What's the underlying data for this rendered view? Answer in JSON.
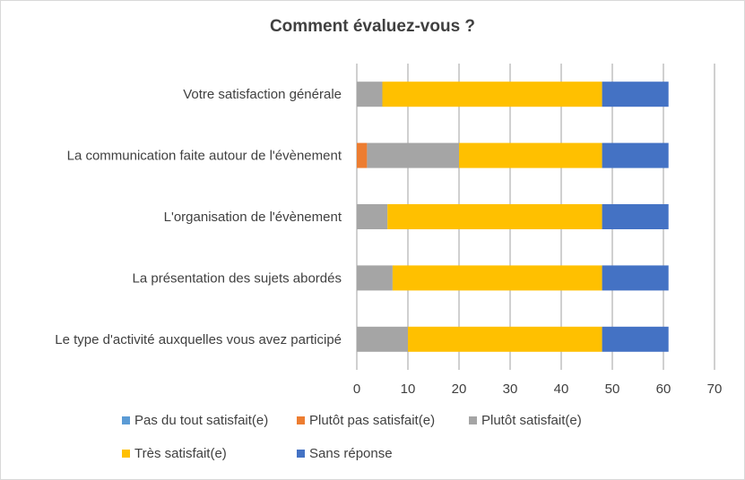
{
  "chart_data": {
    "type": "bar",
    "orientation": "horizontal",
    "stacked": true,
    "title": "Comment évaluez-vous ?",
    "categories": [
      "Votre satisfaction générale",
      "La communication faite autour de l'évènement",
      "L'organisation de l'évènement",
      "La présentation des sujets abordés",
      "Le type d'activité auxquelles vous avez participé"
    ],
    "series": [
      {
        "name": "Pas du tout satisfait(e)",
        "color": "#5B9BD5",
        "values": [
          0,
          0,
          0,
          0,
          0
        ]
      },
      {
        "name": "Plutôt pas satisfait(e)",
        "color": "#ED7D31",
        "values": [
          0,
          2,
          0,
          0,
          0
        ]
      },
      {
        "name": "Plutôt satisfait(e)",
        "color": "#A5A5A5",
        "values": [
          5,
          18,
          6,
          7,
          10
        ]
      },
      {
        "name": "Très satisfait(e)",
        "color": "#FFC000",
        "values": [
          43,
          28,
          42,
          41,
          38
        ]
      },
      {
        "name": "Sans réponse",
        "color": "#4472C4",
        "values": [
          13,
          13,
          13,
          13,
          13
        ]
      }
    ],
    "xlim": [
      0,
      70
    ],
    "xticks": [
      "0",
      "10",
      "20",
      "30",
      "40",
      "50",
      "60",
      "70"
    ],
    "grid": true,
    "legend": "bottom"
  }
}
